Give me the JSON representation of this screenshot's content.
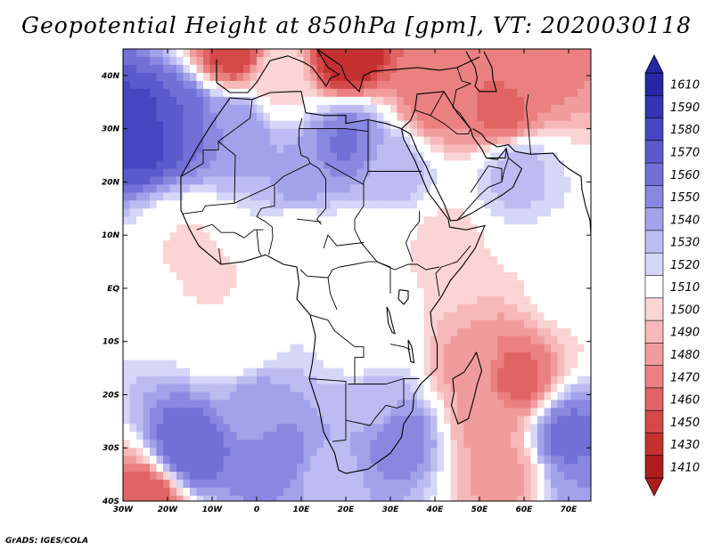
{
  "title": "Geopotential Height at 850hPa [gpm], VT: 2020030118",
  "credit": "GrADS: IGES/COLA",
  "map": {
    "lat_labels": [
      "40N",
      "30N",
      "20N",
      "10N",
      "EQ",
      "10S",
      "20S",
      "30S",
      "40S"
    ],
    "lat_values": [
      40,
      30,
      20,
      10,
      0,
      -10,
      -20,
      -30,
      -40
    ],
    "lon_labels": [
      "30W",
      "20W",
      "10W",
      "0",
      "10E",
      "20E",
      "30E",
      "40E",
      "50E",
      "60E",
      "70E"
    ],
    "lon_values": [
      -30,
      -20,
      -10,
      0,
      10,
      20,
      30,
      40,
      50,
      60,
      70
    ],
    "extent": {
      "lon_min": -30,
      "lon_max": 75,
      "lat_min": -40,
      "lat_max": 45
    }
  },
  "colorbar": {
    "labels": [
      "1610",
      "1590",
      "1580",
      "1570",
      "1560",
      "1550",
      "1540",
      "1530",
      "1520",
      "1510",
      "1500",
      "1490",
      "1480",
      "1470",
      "1460",
      "1450",
      "1430",
      "1410"
    ],
    "colors": [
      "#2626a6",
      "#3434b4",
      "#4646c0",
      "#5a5acc",
      "#7070d6",
      "#8888e0",
      "#a2a2ea",
      "#bcbcf2",
      "#d6d6f8",
      "#ffffff",
      "#fbd4d4",
      "#f6b8b8",
      "#f09c9c",
      "#ea8080",
      "#e06464",
      "#d44848",
      "#c43030",
      "#b01c1c"
    ]
  },
  "fields": [
    {
      "lon": -25,
      "lat": 30,
      "v": 60
    },
    {
      "lon": -18,
      "lat": 32,
      "v": 45
    },
    {
      "lon": -5,
      "lat": 30,
      "v": 30
    },
    {
      "lon": 20,
      "lat": 27,
      "v": 38
    },
    {
      "lon": 10,
      "lat": 20,
      "v": 25
    },
    {
      "lon": 30,
      "lat": 22,
      "v": 20
    },
    {
      "lon": 58,
      "lat": 22,
      "v": 18
    },
    {
      "lon": 55,
      "lat": 33,
      "v": -40
    },
    {
      "lon": 40,
      "lat": 36,
      "v": -35
    },
    {
      "lon": 20,
      "lat": 44,
      "v": -60
    },
    {
      "lon": -5,
      "lat": 45,
      "v": -50
    },
    {
      "lon": 60,
      "lat": 42,
      "v": -35
    },
    {
      "lon": -15,
      "lat": 8,
      "v": -8
    },
    {
      "lon": -10,
      "lat": 2,
      "v": -8
    },
    {
      "lon": 25,
      "lat": 8,
      "v": -5
    },
    {
      "lon": 42,
      "lat": 8,
      "v": -10
    },
    {
      "lon": 70,
      "lat": 0,
      "v": -5
    },
    {
      "lon": -5,
      "lat": -10,
      "v": -5
    },
    {
      "lon": 25,
      "lat": -10,
      "v": 0
    },
    {
      "lon": 48,
      "lat": -15,
      "v": -25
    },
    {
      "lon": 58,
      "lat": -17,
      "v": -40
    },
    {
      "lon": 52,
      "lat": -25,
      "v": -25
    },
    {
      "lon": 55,
      "lat": -35,
      "v": -25
    },
    {
      "lon": 27,
      "lat": -22,
      "v": 20
    },
    {
      "lon": 32,
      "lat": -28,
      "v": 35
    },
    {
      "lon": 0,
      "lat": -22,
      "v": 25
    },
    {
      "lon": -15,
      "lat": -30,
      "v": 45
    },
    {
      "lon": 5,
      "lat": -32,
      "v": 35
    },
    {
      "lon": 15,
      "lat": -36,
      "v": 20
    },
    {
      "lon": 70,
      "lat": -28,
      "v": 40
    },
    {
      "lon": 75,
      "lat": -38,
      "v": 30
    },
    {
      "lon": -25,
      "lat": -40,
      "v": -45
    },
    {
      "lon": 10,
      "lat": 10,
      "v": 0
    },
    {
      "lon": 5,
      "lat": 40,
      "v": -10
    }
  ]
}
